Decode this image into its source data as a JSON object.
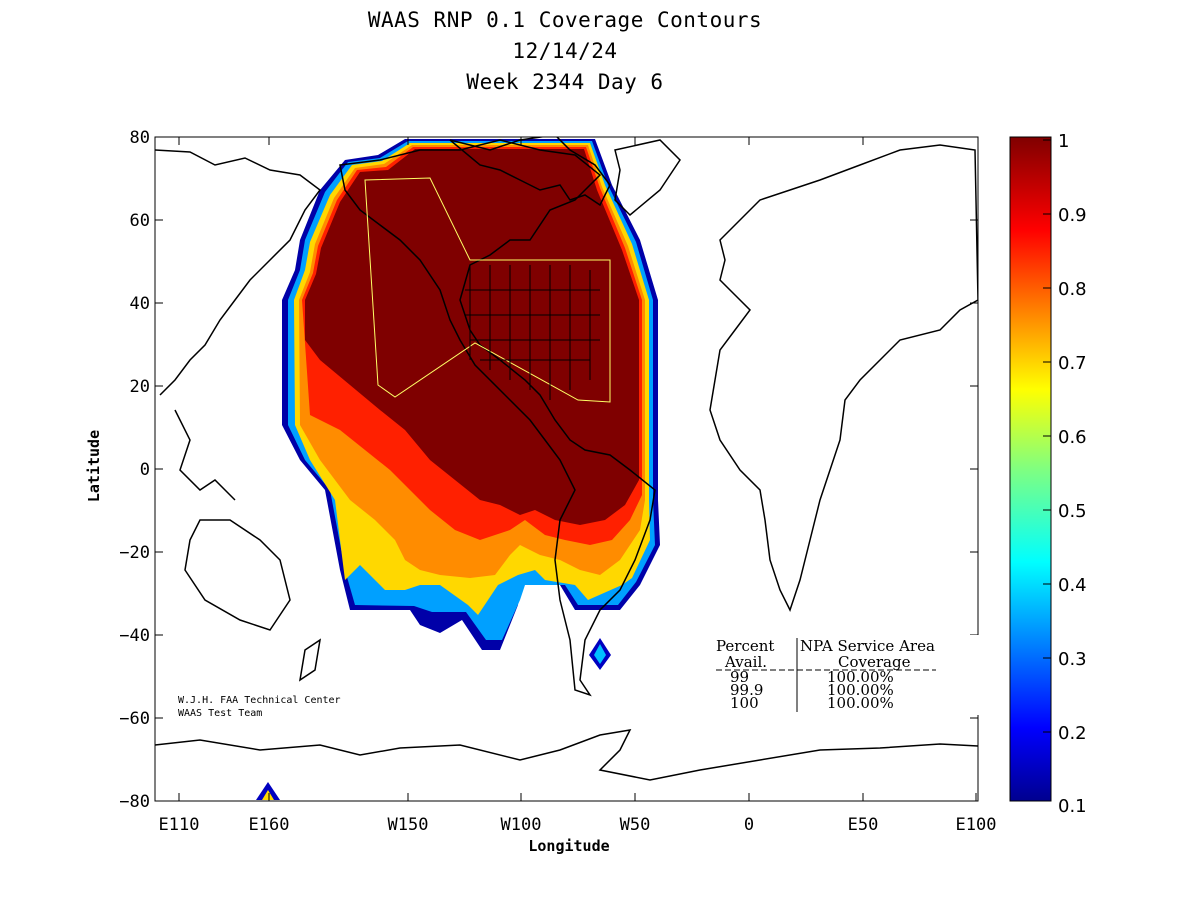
{
  "title": {
    "line1": "WAAS RNP 0.1 Coverage Contours",
    "line2": "12/14/24",
    "line3": "Week 2344 Day 6"
  },
  "axes": {
    "xlabel": "Longitude",
    "ylabel": "Latitude",
    "x_ticks": [
      "E110",
      "E160",
      "W150",
      "W100",
      "W50",
      "0",
      "E50",
      "E100"
    ],
    "y_ticks": [
      "80",
      "60",
      "40",
      "20",
      "0",
      "−20",
      "−40",
      "−60",
      "−80"
    ]
  },
  "colorbar": {
    "ticks": [
      "1",
      "0.9",
      "0.8",
      "0.7",
      "0.6",
      "0.5",
      "0.4",
      "0.3",
      "0.2",
      "0.1"
    ]
  },
  "credit": {
    "line1": "W.J.H. FAA Technical Center",
    "line2": "WAAS Test Team"
  },
  "stats_table": {
    "header_col1_line1": "Percent",
    "header_col2_line1": "NPA Service Area",
    "header_col1_line2": "Avail.",
    "header_col2_line2": "Coverage",
    "rows": [
      {
        "avail": "99",
        "coverage": "100.00%"
      },
      {
        "avail": "99.9",
        "coverage": "100.00%"
      },
      {
        "avail": "100",
        "coverage": "100.00%"
      }
    ]
  }
}
